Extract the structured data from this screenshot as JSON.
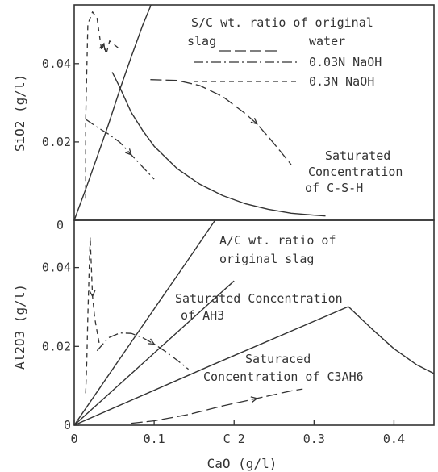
{
  "chart_data": [
    {
      "type": "line",
      "panel": "top",
      "ylabel": "SiO2 (g/l)",
      "xlim": [
        0,
        0.45
      ],
      "ylim": [
        0,
        0.055
      ],
      "yticks": [
        0,
        0.02,
        0.04
      ],
      "ytick_labels": [
        "0",
        "0.02",
        "0.04"
      ],
      "grid": false,
      "legend_title": "S/C wt. ratio of original slag",
      "legend_title_lines": [
        "S/C wt. ratio of original",
        "slag"
      ],
      "legend": [
        {
          "label": "water",
          "style": "long-dash"
        },
        {
          "label": "0.03N NaOH",
          "style": "dash-dot"
        },
        {
          "label": "0.3N NaOH",
          "style": "short-dash"
        }
      ],
      "annotation_lines": [
        "Saturated",
        "Concentration",
        "of C-S-H"
      ],
      "series": [
        {
          "name": "S/C ratio line",
          "style": "solid",
          "x": [
            0,
            0.0143,
            0.0286,
            0.0429,
            0.0571,
            0.0714,
            0.0857,
            0.0962
          ],
          "y": [
            0,
            0.0079,
            0.0161,
            0.0245,
            0.0334,
            0.0418,
            0.0498,
            0.055
          ]
        },
        {
          "name": "Saturated Concentration of C-S-H",
          "style": "solid",
          "x": [
            0.0476,
            0.0571,
            0.0714,
            0.0857,
            0.1,
            0.1286,
            0.1571,
            0.1857,
            0.2143,
            0.2429,
            0.2714,
            0.3,
            0.3143
          ],
          "y": [
            0.0378,
            0.0339,
            0.0275,
            0.0229,
            0.0189,
            0.0132,
            0.0092,
            0.0063,
            0.0042,
            0.0028,
            0.0018,
            0.0013,
            0.0011
          ]
        },
        {
          "name": "water",
          "style": "long-dash",
          "x": [
            0.0952,
            0.1286,
            0.1571,
            0.1857,
            0.2143,
            0.2286,
            0.2429,
            0.2571,
            0.2714
          ],
          "y": [
            0.0359,
            0.0357,
            0.0344,
            0.0316,
            0.0272,
            0.0246,
            0.0213,
            0.0178,
            0.0142
          ]
        },
        {
          "name": "0.03N NaOH",
          "style": "dash-dot",
          "x": [
            0.0143,
            0.0286,
            0.0429,
            0.0571,
            0.0714,
            0.0857,
            0.1
          ],
          "y": [
            0.0258,
            0.0238,
            0.022,
            0.0199,
            0.0167,
            0.0136,
            0.0105
          ]
        },
        {
          "name": "0.3N NaOH",
          "style": "short-dash",
          "x": [
            0.0143,
            0.0143,
            0.0171,
            0.0229,
            0.0286,
            0.0343,
            0.0371,
            0.04,
            0.0443,
            0.0571
          ],
          "y": [
            0.0055,
            0.0256,
            0.0501,
            0.0532,
            0.0516,
            0.0433,
            0.0451,
            0.0424,
            0.0458,
            0.0437
          ]
        }
      ]
    },
    {
      "type": "line",
      "panel": "bottom",
      "xlabel": "CaO (g/l)",
      "ylabel": "Al2O3 (g/l)",
      "xlim": [
        0,
        0.45
      ],
      "ylim": [
        0,
        0.052
      ],
      "xticks": [
        0,
        0.1,
        0.2,
        0.3,
        0.4
      ],
      "xtick_labels": [
        "0",
        "0.1",
        "C 2",
        "0.3",
        "0.4"
      ],
      "yticks": [
        0,
        0.02,
        0.04
      ],
      "ytick_labels": [
        "0",
        "0.02",
        "0.04"
      ],
      "grid": false,
      "legend_title": "A/C wt. ratio of original slag",
      "legend_title_lines": [
        "A/C wt. ratio of",
        "original slag"
      ],
      "annotation_ah3_lines": [
        "Saturated Concentration",
        "of AH3"
      ],
      "annotation_c3ah6_lines": [
        "Saturaced",
        "Concentration of C3AH6"
      ],
      "series": [
        {
          "name": "A/C ratio line (steep)",
          "style": "solid",
          "x": [
            0,
            0.0714,
            0.1429,
            0.1762
          ],
          "y": [
            0,
            0.0211,
            0.0421,
            0.052
          ]
        },
        {
          "name": "A/C ratio line (mid)",
          "style": "solid",
          "x": [
            0,
            0.1,
            0.2
          ],
          "y": [
            0,
            0.0183,
            0.0366
          ]
        },
        {
          "name": "A/C ratio line (low)",
          "style": "solid",
          "x": [
            0,
            0.1714,
            0.3429
          ],
          "y": [
            0,
            0.0152,
            0.0301
          ]
        },
        {
          "name": "Saturated Concentration of C3AH6",
          "style": "solid",
          "x": [
            0.3429,
            0.3714,
            0.4,
            0.4286,
            0.45
          ],
          "y": [
            0.0301,
            0.0246,
            0.0194,
            0.0153,
            0.0131
          ]
        },
        {
          "name": "water",
          "style": "long-dash",
          "x": [
            0.0714,
            0.1,
            0.1429,
            0.1857,
            0.2286,
            0.2714,
            0.2857
          ],
          "y": [
            0.0005,
            0.0011,
            0.0027,
            0.0049,
            0.0068,
            0.0087,
            0.0092
          ]
        },
        {
          "name": "0.03N NaOH",
          "style": "dash-dot",
          "x": [
            0.0286,
            0.0429,
            0.0571,
            0.0714,
            0.0857,
            0.1,
            0.1143,
            0.1286,
            0.1429
          ],
          "y": [
            0.0189,
            0.0222,
            0.0234,
            0.0233,
            0.0222,
            0.0206,
            0.0187,
            0.0165,
            0.0142
          ]
        },
        {
          "name": "0.3N NaOH",
          "style": "short-dash",
          "x": [
            0.0143,
            0.0157,
            0.0171,
            0.0186,
            0.02,
            0.0229,
            0.0257,
            0.0286,
            0.0314
          ],
          "y": [
            0.0081,
            0.0162,
            0.0277,
            0.0385,
            0.0477,
            0.0327,
            0.0271,
            0.0238,
            0.0207
          ]
        }
      ]
    }
  ]
}
